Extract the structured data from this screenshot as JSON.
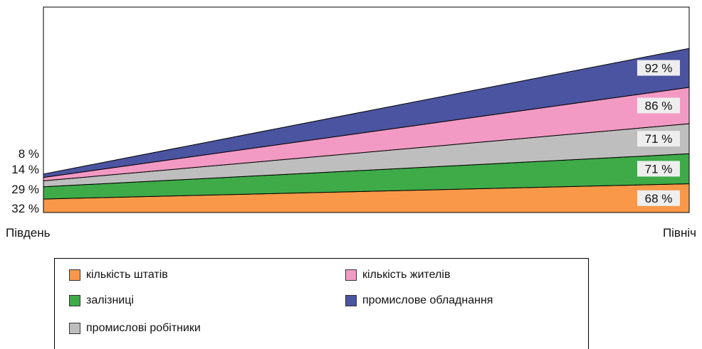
{
  "chart_data": {
    "type": "area",
    "stacked": true,
    "categories": [
      "Південь",
      "Північ"
    ],
    "series": [
      {
        "name": "кількість штатів",
        "color": "#F89848",
        "values": [
          32,
          68
        ],
        "labels": [
          "32 %",
          "68 %"
        ]
      },
      {
        "name": "залізниці",
        "color": "#3EAB48",
        "values": [
          29,
          71
        ],
        "labels": [
          "29 %",
          "71 %"
        ]
      },
      {
        "name": "промислові робітники",
        "color": "#BEBEBE",
        "values": [
          14,
          71
        ],
        "labels": [
          "14 %",
          "71 %"
        ]
      },
      {
        "name": "кількість жителів",
        "color": "#F39AC4",
        "values": [
          8,
          86
        ],
        "labels": [
          "8 %",
          "86 %"
        ]
      },
      {
        "name": "промислове обладнання",
        "color": "#4B54A0",
        "values": [
          8,
          92
        ],
        "labels": [
          "8 %",
          "92 %"
        ]
      }
    ],
    "legend": {
      "placement": "bottom",
      "items": [
        {
          "label": "кількість штатів",
          "color": "#F89848"
        },
        {
          "label": "кількість жителів",
          "color": "#F39AC4"
        },
        {
          "label": "залізниці",
          "color": "#3EAB48"
        },
        {
          "label": "промислове обладнання",
          "color": "#4B54A0"
        },
        {
          "label": "промислові робітники",
          "color": "#BEBEBE"
        }
      ]
    },
    "grid": false
  }
}
